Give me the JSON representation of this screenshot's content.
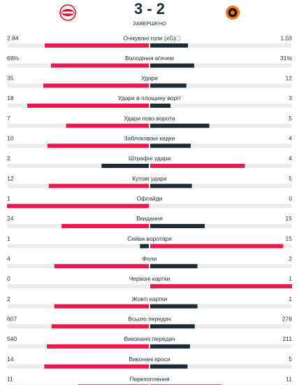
{
  "header": {
    "score": "3 - 2",
    "status": "ЗАВЕРШЕНО"
  },
  "stats": [
    {
      "label": "Очікувані голи (xG)",
      "home": 2.84,
      "away": 1.03
    },
    {
      "label": "Володіння м'ячем",
      "home": 69,
      "home_label": "69%",
      "away": 31,
      "away_label": "31%"
    },
    {
      "label": "Удари",
      "home": 35,
      "away": 12
    },
    {
      "label": "Удари в площину воріт",
      "home": 18,
      "away": 3
    },
    {
      "label": "Удари повз ворота",
      "home": 7,
      "away": 5
    },
    {
      "label": "Заблоковані кидки",
      "home": 10,
      "away": 4
    },
    {
      "label": "Штрафні удари",
      "home": 2,
      "away": 4
    },
    {
      "label": "Кутові удари",
      "home": 12,
      "away": 5
    },
    {
      "label": "Офсайди",
      "home": 1,
      "away": 0
    },
    {
      "label": "Вкидання",
      "home": 24,
      "away": 15
    },
    {
      "label": "Сейви воротаря",
      "home": 1,
      "away": 15
    },
    {
      "label": "Фоли",
      "home": 4,
      "away": 2
    },
    {
      "label": "Червоні картки",
      "home": 0,
      "away": 1
    },
    {
      "label": "Жовті картки",
      "home": 2,
      "away": 1
    },
    {
      "label": "Всього передач",
      "home": 607,
      "away": 278
    },
    {
      "label": "Виконано передач",
      "home": 540,
      "away": 211
    },
    {
      "label": "Виконані кроси",
      "home": 14,
      "away": 5
    },
    {
      "label": "Перехоплення",
      "home": 11,
      "away": 11
    }
  ]
}
